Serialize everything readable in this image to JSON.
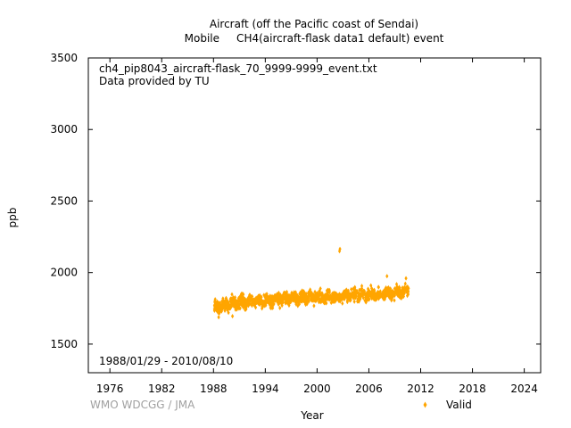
{
  "chart_data": {
    "type": "scatter",
    "title_line1": "Aircraft (off the Pacific coast of Sendai)",
    "title_line2": "Mobile     CH4(aircraft-flask data1 default) event",
    "annotation_file": "ch4_pip8043_aircraft-flask_70_9999-9999_event.txt",
    "annotation_provider": "Data provided by TU",
    "date_range": "1988/01/29 - 2010/08/10",
    "credit": "WMO WDCGG / JMA",
    "xlabel": "Year",
    "ylabel": "ppb",
    "xlim": [
      1973.5,
      2025.9
    ],
    "ylim": [
      1300,
      3500
    ],
    "x_ticks": [
      1976,
      1982,
      1988,
      1994,
      2000,
      2006,
      2012,
      2018,
      2024
    ],
    "y_ticks": [
      1500,
      2000,
      2500,
      3000,
      3500
    ],
    "grid": false,
    "legend_position": "bottom-right",
    "series": [
      {
        "name": "Valid",
        "color": "#ffa500",
        "marker": "diamond",
        "trend_nodes": [
          [
            1988.08,
            1755
          ],
          [
            1989.0,
            1770
          ],
          [
            1990.0,
            1780
          ],
          [
            1992.0,
            1795
          ],
          [
            1994.0,
            1805
          ],
          [
            1996.0,
            1815
          ],
          [
            1998.0,
            1825
          ],
          [
            2000.0,
            1830
          ],
          [
            2002.0,
            1832
          ],
          [
            2004.0,
            1838
          ],
          [
            2006.0,
            1842
          ],
          [
            2008.0,
            1852
          ],
          [
            2010.6,
            1870
          ]
        ],
        "spread_ppb": 20,
        "outliers": [
          [
            2002.6,
            2150
          ],
          [
            2002.65,
            2165
          ],
          [
            2008.1,
            1975
          ],
          [
            2010.3,
            1960
          ],
          [
            1990.2,
            1695
          ],
          [
            1988.6,
            1688
          ]
        ]
      }
    ]
  }
}
